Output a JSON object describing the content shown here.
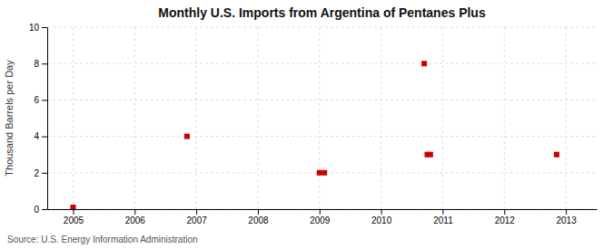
{
  "chart_data": {
    "type": "scatter",
    "title": "Monthly U.S. Imports from Argentina of Pentanes Plus",
    "ylabel": "Thousand Barrels per Day",
    "annotations": [
      "Source: U.S. Energy Information Administration"
    ],
    "x": [
      2005.0,
      2006.85,
      2009.0,
      2009.08,
      2010.7,
      2010.75,
      2010.8,
      2012.85
    ],
    "values": [
      0.1,
      4.0,
      2.0,
      2.0,
      8.0,
      3.0,
      3.0,
      3.0
    ],
    "color": "#cc0000",
    "marker": "square",
    "xlim": [
      2004.58,
      2013.5
    ],
    "ylim": [
      0,
      10
    ],
    "xticks": [
      2005,
      2006,
      2007,
      2008,
      2009,
      2010,
      2011,
      2012,
      2013
    ],
    "yticks": [
      0,
      2,
      4,
      6,
      8,
      10
    ],
    "grid": true
  }
}
